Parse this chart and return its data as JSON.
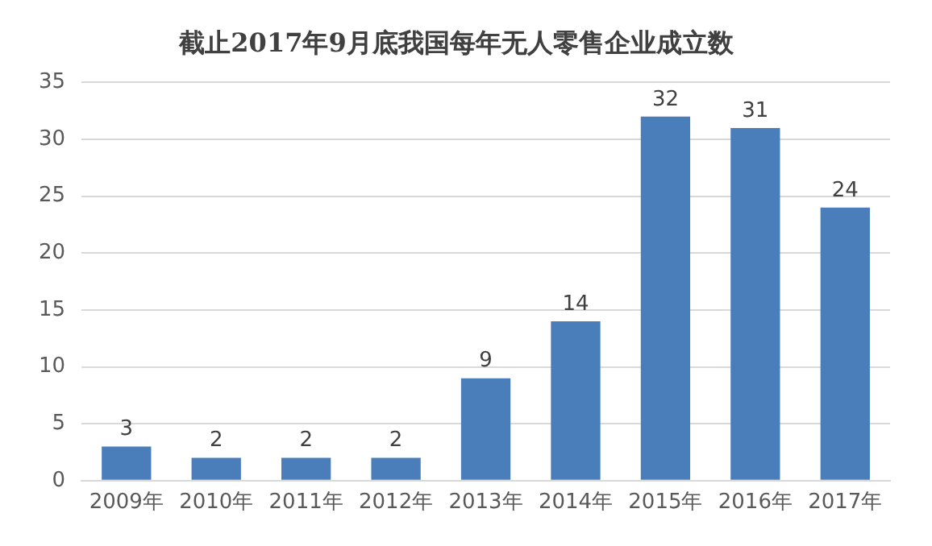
{
  "chart_data": {
    "type": "bar",
    "title": "截止2017年9月底我国每年无人零售企业成立数",
    "categories": [
      "2009年",
      "2010年",
      "2011年",
      "2012年",
      "2013年",
      "2014年",
      "2015年",
      "2016年",
      "2017年"
    ],
    "values": [
      3,
      2,
      2,
      2,
      9,
      14,
      32,
      31,
      24
    ],
    "color": "#4a7ebb",
    "ylim": [
      0,
      35
    ],
    "yticks": [
      0,
      5,
      10,
      15,
      20,
      25,
      30,
      35
    ],
    "grid": "y",
    "data_labels": true
  }
}
